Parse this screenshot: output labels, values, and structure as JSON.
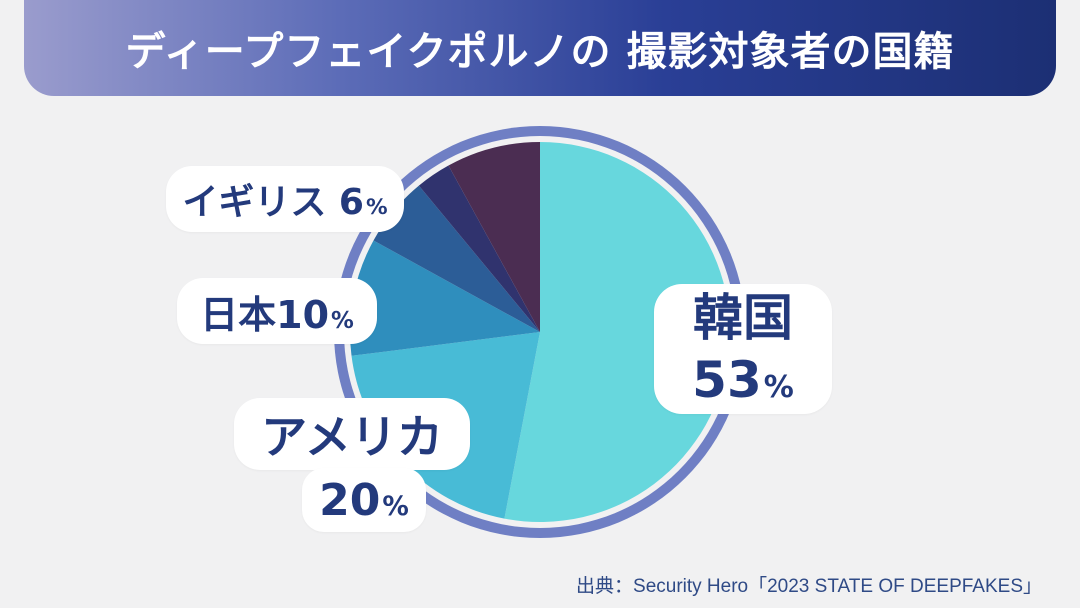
{
  "title": "ディープフェイクポルノの 撮影対象者の国籍",
  "source": "出典：Security Hero「2023 STATE OF DEEPFAKES」",
  "colors": {
    "ring": "#6f7fc4",
    "korea": "#67d7dd",
    "usa": "#48bbd6",
    "japan": "#2f8ebd",
    "uk": "#2c5d97",
    "other_a": "#30336e",
    "other_b": "#4b2d52"
  },
  "labels": {
    "korea_name": "韓国",
    "korea_pct": "53",
    "usa_name": "アメリカ",
    "usa_pct": "20",
    "japan_name": "日本",
    "japan_pct": "10",
    "uk_name": "イギリス",
    "uk_pct": "6",
    "pct_unit": "%"
  },
  "chart_data": {
    "type": "pie",
    "title": "ディープフェイクポルノの 撮影対象者の国籍",
    "slices": [
      {
        "label": "韓国",
        "value": 53,
        "color": "#67d7dd"
      },
      {
        "label": "アメリカ",
        "value": 20,
        "color": "#48bbd6"
      },
      {
        "label": "日本",
        "value": 10,
        "color": "#2f8ebd"
      },
      {
        "label": "イギリス",
        "value": 6,
        "color": "#2c5d97"
      },
      {
        "label": "",
        "value": 3,
        "color": "#30336e"
      },
      {
        "label": "",
        "value": 8,
        "color": "#4b2d52"
      }
    ],
    "start": "top",
    "direction": "clockwise",
    "legend": "none"
  }
}
